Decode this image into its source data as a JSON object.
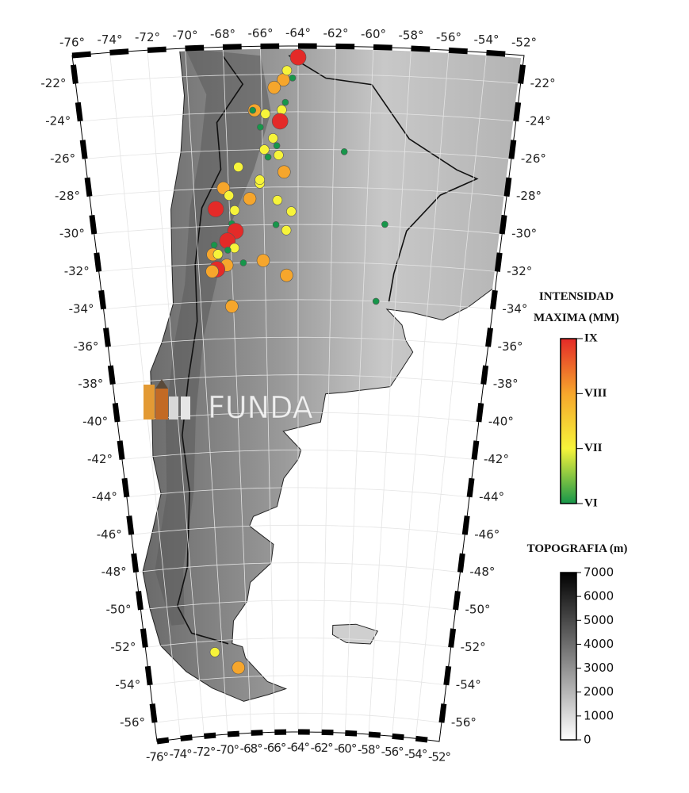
{
  "map": {
    "lon_lim": [
      -76,
      -52
    ],
    "lat_lim": [
      -20.5,
      -57
    ],
    "lon_ticks": [
      {
        "value": -76,
        "label": "-76°"
      },
      {
        "value": -74,
        "label": "-74°"
      },
      {
        "value": -72,
        "label": "-72°"
      },
      {
        "value": -70,
        "label": "-70°"
      },
      {
        "value": -68,
        "label": "-68°"
      },
      {
        "value": -66,
        "label": "-66°"
      },
      {
        "value": -64,
        "label": "-64°"
      },
      {
        "value": -62,
        "label": "-62°"
      },
      {
        "value": -60,
        "label": "-60°"
      },
      {
        "value": -58,
        "label": "-58°"
      },
      {
        "value": -56,
        "label": "-56°"
      },
      {
        "value": -54,
        "label": "-54°"
      },
      {
        "value": -52,
        "label": "-52°"
      }
    ],
    "lat_ticks": [
      {
        "value": -22,
        "label": "-22°"
      },
      {
        "value": -24,
        "label": "-24°"
      },
      {
        "value": -26,
        "label": "-26°"
      },
      {
        "value": -28,
        "label": "-28°"
      },
      {
        "value": -30,
        "label": "-30°"
      },
      {
        "value": -32,
        "label": "-32°"
      },
      {
        "value": -34,
        "label": "-34°"
      },
      {
        "value": -36,
        "label": "-36°"
      },
      {
        "value": -38,
        "label": "-38°"
      },
      {
        "value": -40,
        "label": "-40°"
      },
      {
        "value": -42,
        "label": "-42°"
      },
      {
        "value": -44,
        "label": "-44°"
      },
      {
        "value": -46,
        "label": "-46°"
      },
      {
        "value": -48,
        "label": "-48°"
      },
      {
        "value": -50,
        "label": "-50°"
      },
      {
        "value": -52,
        "label": "-52°"
      },
      {
        "value": -54,
        "label": "-54°"
      },
      {
        "value": -56,
        "label": "-56°"
      }
    ]
  },
  "events": [
    {
      "lon": -64.0,
      "lat": -21.1,
      "intensity": 9
    },
    {
      "lon": -64.8,
      "lat": -22.3,
      "intensity": 8
    },
    {
      "lon": -65.3,
      "lat": -22.7,
      "intensity": 8
    },
    {
      "lon": -64.3,
      "lat": -22.2,
      "intensity": 6
    },
    {
      "lon": -64.6,
      "lat": -21.8,
      "intensity": 7
    },
    {
      "lon": -64.7,
      "lat": -23.5,
      "intensity": 6
    },
    {
      "lon": -66.4,
      "lat": -23.9,
      "intensity": 8
    },
    {
      "lon": -66.5,
      "lat": -23.9,
      "intensity": 6
    },
    {
      "lon": -65.8,
      "lat": -24.1,
      "intensity": 7
    },
    {
      "lon": -64.9,
      "lat": -23.9,
      "intensity": 7
    },
    {
      "lon": -65.0,
      "lat": -24.5,
      "intensity": 9
    },
    {
      "lon": -66.1,
      "lat": -24.8,
      "intensity": 6
    },
    {
      "lon": -65.4,
      "lat": -25.4,
      "intensity": 7
    },
    {
      "lon": -65.2,
      "lat": -25.8,
      "intensity": 6
    },
    {
      "lon": -65.9,
      "lat": -26.0,
      "intensity": 7
    },
    {
      "lon": -65.7,
      "lat": -26.4,
      "intensity": 6
    },
    {
      "lon": -65.1,
      "lat": -26.3,
      "intensity": 7
    },
    {
      "lon": -61.4,
      "lat": -26.1,
      "intensity": 6
    },
    {
      "lon": -64.8,
      "lat": -27.2,
      "intensity": 8
    },
    {
      "lon": -67.4,
      "lat": -26.9,
      "intensity": 7
    },
    {
      "lon": -66.2,
      "lat": -27.8,
      "intensity": 7
    },
    {
      "lon": -66.2,
      "lat": -27.6,
      "intensity": 7
    },
    {
      "lon": -66.8,
      "lat": -28.6,
      "intensity": 8
    },
    {
      "lon": -68.3,
      "lat": -28.0,
      "intensity": 8
    },
    {
      "lon": -68.0,
      "lat": -28.4,
      "intensity": 7
    },
    {
      "lon": -67.7,
      "lat": -29.2,
      "intensity": 7
    },
    {
      "lon": -68.8,
      "lat": -29.1,
      "intensity": 9
    },
    {
      "lon": -65.2,
      "lat": -28.7,
      "intensity": 7
    },
    {
      "lon": -64.4,
      "lat": -29.3,
      "intensity": 7
    },
    {
      "lon": -65.3,
      "lat": -30.0,
      "intensity": 6
    },
    {
      "lon": -64.7,
      "lat": -30.3,
      "intensity": 7
    },
    {
      "lon": -58.9,
      "lat": -29.9,
      "intensity": 6
    },
    {
      "lon": -67.9,
      "lat": -29.9,
      "intensity": 6
    },
    {
      "lon": -67.7,
      "lat": -30.3,
      "intensity": 9
    },
    {
      "lon": -68.2,
      "lat": -30.8,
      "intensity": 9
    },
    {
      "lon": -67.8,
      "lat": -31.2,
      "intensity": 7
    },
    {
      "lon": -69.0,
      "lat": -31.0,
      "intensity": 6
    },
    {
      "lon": -68.2,
      "lat": -31.3,
      "intensity": 6
    },
    {
      "lon": -69.1,
      "lat": -31.5,
      "intensity": 8
    },
    {
      "lon": -68.8,
      "lat": -31.5,
      "intensity": 7
    },
    {
      "lon": -67.3,
      "lat": -32.0,
      "intensity": 6
    },
    {
      "lon": -66.1,
      "lat": -31.9,
      "intensity": 8
    },
    {
      "lon": -68.3,
      "lat": -32.1,
      "intensity": 8
    },
    {
      "lon": -68.9,
      "lat": -32.3,
      "intensity": 9
    },
    {
      "lon": -69.2,
      "lat": -32.4,
      "intensity": 8
    },
    {
      "lon": -64.7,
      "lat": -32.7,
      "intensity": 8
    },
    {
      "lon": -59.2,
      "lat": -34.0,
      "intensity": 6
    },
    {
      "lon": -68.2,
      "lat": -34.1,
      "intensity": 6
    },
    {
      "lon": -68.1,
      "lat": -34.3,
      "intensity": 8
    },
    {
      "lon": -70.6,
      "lat": -52.6,
      "intensity": 7
    },
    {
      "lon": -68.8,
      "lat": -53.5,
      "intensity": 8
    }
  ],
  "intensity_legend": {
    "title_lines": [
      "INTENSIDAD",
      "MAXIMA (MM)"
    ],
    "range": [
      6,
      9
    ],
    "ticks": [
      {
        "value": 9,
        "label": "IX"
      },
      {
        "value": 8,
        "label": "VIII"
      },
      {
        "value": 7,
        "label": "VII"
      },
      {
        "value": 6,
        "label": "VI"
      }
    ],
    "colors": [
      "#17964a",
      "#f7f43a",
      "#f6a62c",
      "#e42a28"
    ]
  },
  "topography_legend": {
    "title": "TOPOGRAFIA (m)",
    "range": [
      0,
      7000
    ],
    "ticks": [
      0,
      1000,
      2000,
      3000,
      4000,
      5000,
      6000,
      7000
    ]
  },
  "watermark": "FUNDA"
}
